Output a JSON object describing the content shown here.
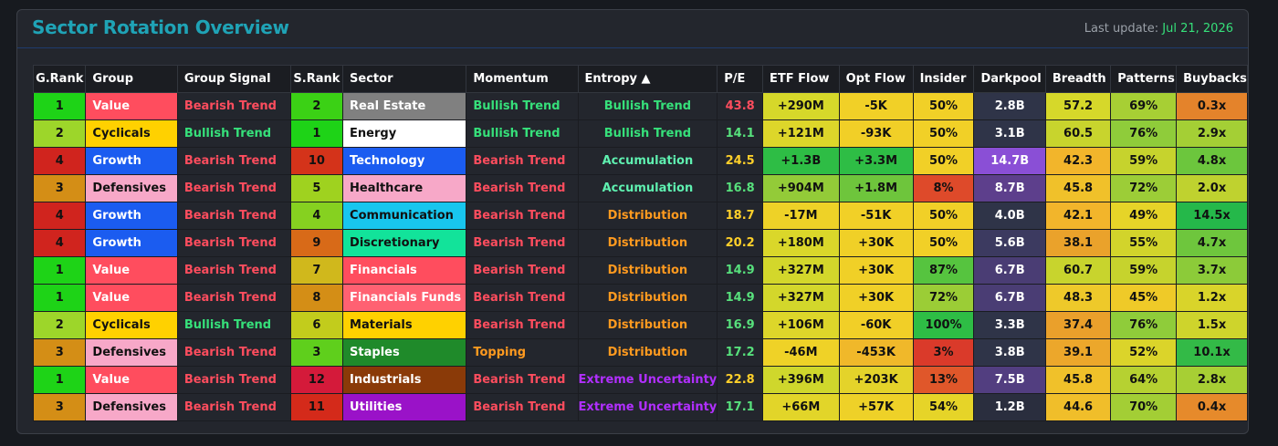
{
  "title": "Sector Rotation Overview",
  "last_update_label": "Last update:",
  "last_update_date": "Jul 21, 2026",
  "columns": [
    "G.Rank",
    "Group",
    "Group Signal",
    "S.Rank",
    "Sector",
    "Momentum",
    "Entropy ▲",
    "P/E",
    "ETF Flow",
    "Opt Flow",
    "Insider",
    "Darkpool",
    "Breadth",
    "Patterns",
    "Buybacks"
  ],
  "colors": {
    "bearish": "#ff4d5e",
    "bullish": "#36e07a",
    "accumulation": "#5ff0b0",
    "distribution": "#ff9a1f",
    "uncertainty": "#b12fff",
    "pe_red": "#ff4d5e",
    "pe_yellow": "#ffd02a",
    "pe_green": "#57e07c"
  },
  "rows": [
    {
      "grank": "1",
      "grank_bg": "#1ed317",
      "group": "Value",
      "group_bg": "#ff4d5e",
      "signal": "Bearish Trend",
      "signal_type": "bearish",
      "srank": "2",
      "srank_bg": "#3bd115",
      "sector": "Real Estate",
      "sector_bg": "#808080",
      "sector_fg": "#ffffff",
      "momentum": "Bullish Trend",
      "momentum_type": "bullish",
      "entropy": "Bullish Trend",
      "entropy_type": "bullish",
      "pe": "43.8",
      "pe_color": "#ff4d5e",
      "etf": "+290M",
      "etf_bg": "#d6d82a",
      "opt": "-5K",
      "opt_bg": "#f1d027",
      "insider": "50%",
      "insider_bg": "#f1d027",
      "darkpool": "2.8B",
      "darkpool_bg": "#2f3448",
      "breadth": "57.2",
      "breadth_bg": "#d6d82a",
      "patterns": "69%",
      "patterns_bg": "#a7cf34",
      "buybacks": "0.3x",
      "buybacks_bg": "#e4832b"
    },
    {
      "grank": "2",
      "grank_bg": "#9dd62a",
      "group": "Cyclicals",
      "group_bg": "#ffd100",
      "signal": "Bullish Trend",
      "signal_type": "bullish",
      "srank": "1",
      "srank_bg": "#1ed317",
      "sector": "Energy",
      "sector_bg": "#ffffff",
      "sector_fg": "#111111",
      "momentum": "Bullish Trend",
      "momentum_type": "bullish",
      "entropy": "Bullish Trend",
      "entropy_type": "bullish",
      "pe": "14.1",
      "pe_color": "#57e07c",
      "etf": "+121M",
      "etf_bg": "#ddd62a",
      "opt": "-93K",
      "opt_bg": "#f1cf27",
      "insider": "50%",
      "insider_bg": "#f1d027",
      "darkpool": "3.1B",
      "darkpool_bg": "#2f3448",
      "breadth": "60.5",
      "breadth_bg": "#c8d42d",
      "patterns": "76%",
      "patterns_bg": "#8fcc3a",
      "buybacks": "2.9x",
      "buybacks_bg": "#a4cf35"
    },
    {
      "grank": "4",
      "grank_bg": "#d0241e",
      "group": "Growth",
      "group_bg": "#1b5cf0",
      "signal": "Bearish Trend",
      "signal_type": "bearish",
      "srank": "10",
      "srank_bg": "#d4331a",
      "sector": "Technology",
      "sector_bg": "#1b5cf0",
      "sector_fg": "#ffffff",
      "momentum": "Bearish Trend",
      "momentum_type": "bearish",
      "entropy": "Accumulation",
      "entropy_type": "accumulation",
      "pe": "24.5",
      "pe_color": "#ffd02a",
      "etf": "+1.3B",
      "etf_bg": "#2ebd45",
      "opt": "+3.3M",
      "opt_bg": "#2ebd45",
      "insider": "50%",
      "insider_bg": "#f1d027",
      "darkpool": "14.7B",
      "darkpool_bg": "#8a4fd6",
      "breadth": "42.3",
      "breadth_bg": "#f2b52b",
      "patterns": "59%",
      "patterns_bg": "#c6d32d",
      "buybacks": "4.8x",
      "buybacks_bg": "#6cc63d"
    },
    {
      "grank": "3",
      "grank_bg": "#d48e16",
      "group": "Defensives",
      "group_bg": "#f7a8c8",
      "signal": "Bearish Trend",
      "signal_type": "bearish",
      "srank": "5",
      "srank_bg": "#9fd21f",
      "sector": "Healthcare",
      "sector_bg": "#f7a8c8",
      "sector_fg": "#111111",
      "momentum": "Bearish Trend",
      "momentum_type": "bearish",
      "entropy": "Accumulation",
      "entropy_type": "accumulation",
      "pe": "16.8",
      "pe_color": "#57e07c",
      "etf": "+904M",
      "etf_bg": "#93cb38",
      "opt": "+1.8M",
      "opt_bg": "#6ec53c",
      "insider": "8%",
      "insider_bg": "#de4a2a",
      "darkpool": "8.7B",
      "darkpool_bg": "#5d3f8c",
      "breadth": "45.8",
      "breadth_bg": "#f0c12a",
      "patterns": "72%",
      "patterns_bg": "#9ccd37",
      "buybacks": "2.0x",
      "buybacks_bg": "#bfd22f"
    },
    {
      "grank": "4",
      "grank_bg": "#d0241e",
      "group": "Growth",
      "group_bg": "#1b5cf0",
      "signal": "Bearish Trend",
      "signal_type": "bearish",
      "srank": "4",
      "srank_bg": "#86d120",
      "sector": "Communication",
      "sector_bg": "#18c6ee",
      "sector_fg": "#111111",
      "momentum": "Bearish Trend",
      "momentum_type": "bearish",
      "entropy": "Distribution",
      "entropy_type": "distribution",
      "pe": "18.7",
      "pe_color": "#ffd02a",
      "etf": "-17M",
      "etf_bg": "#eed227",
      "opt": "-51K",
      "opt_bg": "#f1d027",
      "insider": "50%",
      "insider_bg": "#f1d027",
      "darkpool": "4.0B",
      "darkpool_bg": "#2f3448",
      "breadth": "42.1",
      "breadth_bg": "#f2b52b",
      "patterns": "49%",
      "patterns_bg": "#e6d428",
      "buybacks": "14.5x",
      "buybacks_bg": "#25b84a"
    },
    {
      "grank": "4",
      "grank_bg": "#d0241e",
      "group": "Growth",
      "group_bg": "#1b5cf0",
      "signal": "Bearish Trend",
      "signal_type": "bearish",
      "srank": "9",
      "srank_bg": "#d86a18",
      "sector": "Discretionary",
      "sector_bg": "#12e39a",
      "sector_fg": "#111111",
      "momentum": "Bearish Trend",
      "momentum_type": "bearish",
      "entropy": "Distribution",
      "entropy_type": "distribution",
      "pe": "20.2",
      "pe_color": "#ffd02a",
      "etf": "+180M",
      "etf_bg": "#dad72a",
      "opt": "+30K",
      "opt_bg": "#f0d027",
      "insider": "50%",
      "insider_bg": "#f1d027",
      "darkpool": "5.6B",
      "darkpool_bg": "#3c3a60",
      "breadth": "38.1",
      "breadth_bg": "#eaa22b",
      "patterns": "55%",
      "patterns_bg": "#d2d42b",
      "buybacks": "4.7x",
      "buybacks_bg": "#6ec63d"
    },
    {
      "grank": "1",
      "grank_bg": "#1ed317",
      "group": "Value",
      "group_bg": "#ff4d5e",
      "signal": "Bearish Trend",
      "signal_type": "bearish",
      "srank": "7",
      "srank_bg": "#d0b81c",
      "sector": "Financials",
      "sector_bg": "#ff4d5e",
      "sector_fg": "#ffffff",
      "momentum": "Bearish Trend",
      "momentum_type": "bearish",
      "entropy": "Distribution",
      "entropy_type": "distribution",
      "pe": "14.9",
      "pe_color": "#57e07c",
      "etf": "+327M",
      "etf_bg": "#d3d72b",
      "opt": "+30K",
      "opt_bg": "#f0d027",
      "insider": "87%",
      "insider_bg": "#56c43f",
      "darkpool": "6.7B",
      "darkpool_bg": "#4a3d74",
      "breadth": "60.7",
      "breadth_bg": "#c8d42d",
      "patterns": "59%",
      "patterns_bg": "#c6d32d",
      "buybacks": "3.7x",
      "buybacks_bg": "#8ccb39"
    },
    {
      "grank": "1",
      "grank_bg": "#1ed317",
      "group": "Value",
      "group_bg": "#ff4d5e",
      "signal": "Bearish Trend",
      "signal_type": "bearish",
      "srank": "8",
      "srank_bg": "#d48e16",
      "sector": "Financials Funds",
      "sector_bg": "#ff6172",
      "sector_fg": "#ffffff",
      "momentum": "Bearish Trend",
      "momentum_type": "bearish",
      "entropy": "Distribution",
      "entropy_type": "distribution",
      "pe": "14.9",
      "pe_color": "#57e07c",
      "etf": "+327M",
      "etf_bg": "#d3d72b",
      "opt": "+30K",
      "opt_bg": "#f0d027",
      "insider": "72%",
      "insider_bg": "#9bcd36",
      "darkpool": "6.7B",
      "darkpool_bg": "#4a3d74",
      "breadth": "48.3",
      "breadth_bg": "#eec92a",
      "patterns": "45%",
      "patterns_bg": "#efca28",
      "buybacks": "1.2x",
      "buybacks_bg": "#d9d42a"
    },
    {
      "grank": "2",
      "grank_bg": "#9dd62a",
      "group": "Cyclicals",
      "group_bg": "#ffd100",
      "signal": "Bullish Trend",
      "signal_type": "bullish",
      "srank": "6",
      "srank_bg": "#c2cc1c",
      "sector": "Materials",
      "sector_bg": "#ffd100",
      "sector_fg": "#111111",
      "momentum": "Bearish Trend",
      "momentum_type": "bearish",
      "entropy": "Distribution",
      "entropy_type": "distribution",
      "pe": "16.9",
      "pe_color": "#57e07c",
      "etf": "+106M",
      "etf_bg": "#ddd62a",
      "opt": "-60K",
      "opt_bg": "#f1cf27",
      "insider": "100%",
      "insider_bg": "#2ebd45",
      "darkpool": "3.3B",
      "darkpool_bg": "#2f3448",
      "breadth": "37.4",
      "breadth_bg": "#eaa02b",
      "patterns": "76%",
      "patterns_bg": "#8fcc3a",
      "buybacks": "1.5x",
      "buybacks_bg": "#ced42c"
    },
    {
      "grank": "3",
      "grank_bg": "#d48e16",
      "group": "Defensives",
      "group_bg": "#f7a8c8",
      "signal": "Bearish Trend",
      "signal_type": "bearish",
      "srank": "3",
      "srank_bg": "#5fcf1c",
      "sector": "Staples",
      "sector_bg": "#1f8a2a",
      "sector_fg": "#ffffff",
      "momentum": "Topping",
      "momentum_type": "distribution",
      "entropy": "Distribution",
      "entropy_type": "distribution",
      "pe": "17.2",
      "pe_color": "#57e07c",
      "etf": "-46M",
      "etf_bg": "#efd227",
      "opt": "-453K",
      "opt_bg": "#f0b82a",
      "insider": "3%",
      "insider_bg": "#da3a2a",
      "darkpool": "3.8B",
      "darkpool_bg": "#2f3448",
      "breadth": "39.1",
      "breadth_bg": "#eca72b",
      "patterns": "52%",
      "patterns_bg": "#dbd42a",
      "buybacks": "10.1x",
      "buybacks_bg": "#33ba47"
    },
    {
      "grank": "1",
      "grank_bg": "#1ed317",
      "group": "Value",
      "group_bg": "#ff4d5e",
      "signal": "Bearish Trend",
      "signal_type": "bearish",
      "srank": "12",
      "srank_bg": "#d41a3a",
      "sector": "Industrials",
      "sector_bg": "#8a3a08",
      "sector_fg": "#ffffff",
      "momentum": "Bearish Trend",
      "momentum_type": "bearish",
      "entropy": "Extreme Uncertainty",
      "entropy_type": "uncertainty",
      "pe": "22.8",
      "pe_color": "#ffd02a",
      "etf": "+396M",
      "etf_bg": "#cfd72c",
      "opt": "+203K",
      "opt_bg": "#e4d32a",
      "insider": "13%",
      "insider_bg": "#e0572a",
      "darkpool": "7.5B",
      "darkpool_bg": "#523e80",
      "breadth": "45.8",
      "breadth_bg": "#f0c12a",
      "patterns": "64%",
      "patterns_bg": "#b6d131",
      "buybacks": "2.8x",
      "buybacks_bg": "#a7cf34"
    },
    {
      "grank": "3",
      "grank_bg": "#d48e16",
      "group": "Defensives",
      "group_bg": "#f7a8c8",
      "signal": "Bearish Trend",
      "signal_type": "bearish",
      "srank": "11",
      "srank_bg": "#d42a1a",
      "sector": "Utilities",
      "sector_bg": "#9a12c8",
      "sector_fg": "#ffffff",
      "momentum": "Bearish Trend",
      "momentum_type": "bearish",
      "entropy": "Extreme Uncertainty",
      "entropy_type": "uncertainty",
      "pe": "17.1",
      "pe_color": "#57e07c",
      "etf": "+66M",
      "etf_bg": "#e2d529",
      "opt": "+57K",
      "opt_bg": "#eed128",
      "insider": "54%",
      "insider_bg": "#e6d428",
      "darkpool": "1.2B",
      "darkpool_bg": "#2a2e3e",
      "breadth": "44.6",
      "breadth_bg": "#f0be2a",
      "patterns": "70%",
      "patterns_bg": "#a3ce35",
      "buybacks": "0.4x",
      "buybacks_bg": "#e68a2b"
    }
  ]
}
